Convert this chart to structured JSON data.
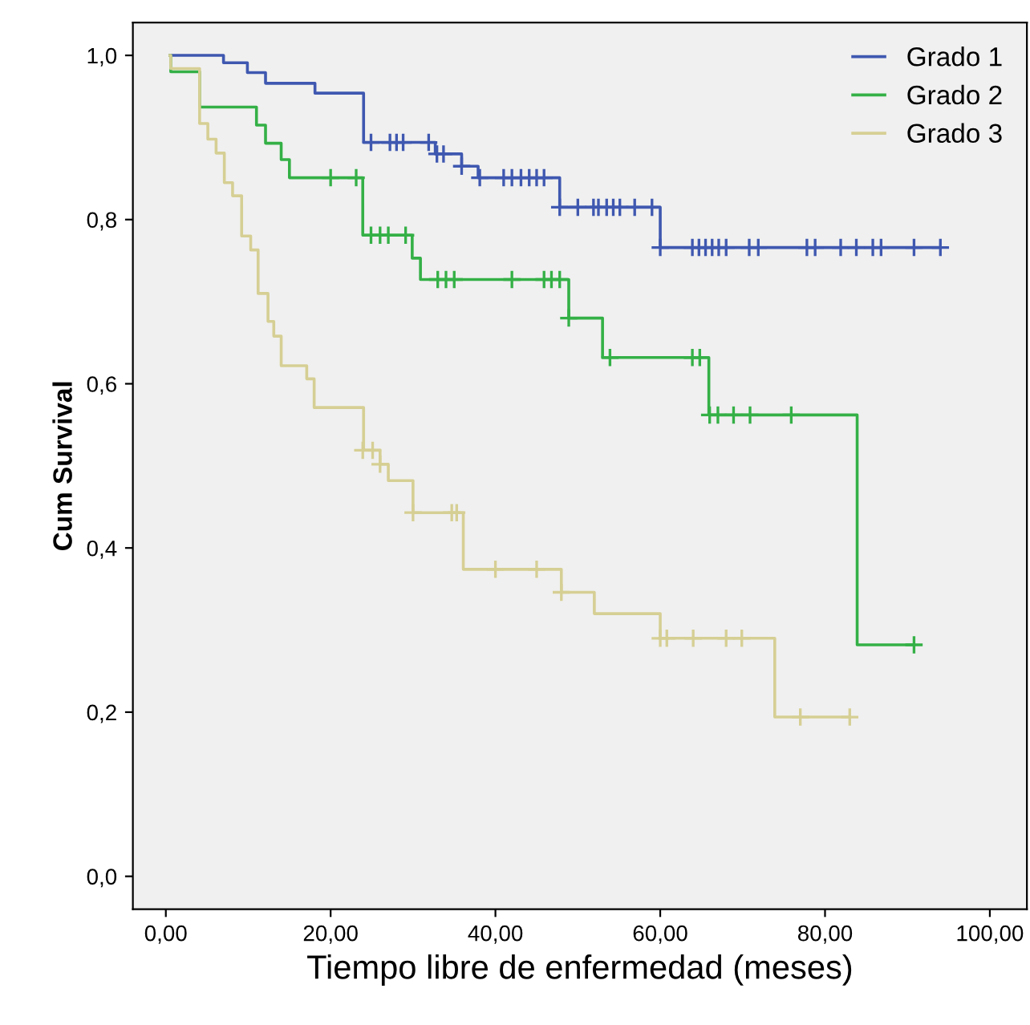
{
  "chart_data": {
    "type": "step",
    "xlabel": "Tiempo libre de enfermedad (meses)",
    "ylabel": "Cum Survival",
    "xlim": [
      -4,
      104.5
    ],
    "ylim": [
      -0.04,
      1.04
    ],
    "xticks": [
      {
        "value": 0,
        "label": "0,00"
      },
      {
        "value": 20,
        "label": "20,00"
      },
      {
        "value": 40,
        "label": "40,00"
      },
      {
        "value": 60,
        "label": "60,00"
      },
      {
        "value": 80,
        "label": "80,00"
      },
      {
        "value": 100,
        "label": "100,00"
      }
    ],
    "yticks": [
      {
        "value": 0,
        "label": "0,0"
      },
      {
        "value": 0.2,
        "label": "0,2"
      },
      {
        "value": 0.4,
        "label": "0,4"
      },
      {
        "value": 0.6,
        "label": "0,6"
      },
      {
        "value": 0.8,
        "label": "0,8"
      },
      {
        "value": 1.0,
        "label": "1,0"
      }
    ],
    "grid": false,
    "legend": "top right",
    "series": [
      {
        "name": "Grado 1",
        "color": "#3f58b0",
        "x": [
          0.5,
          7.0,
          9.9,
          12.1,
          18.1,
          24.0,
          32.7,
          35.9,
          37.9,
          47.8,
          60.0,
          94.0
        ],
        "values": [
          1.0,
          0.991,
          0.979,
          0.966,
          0.954,
          0.894,
          0.88,
          0.865,
          0.851,
          0.815,
          0.766,
          0.766
        ]
      },
      {
        "name": "Grado 2",
        "color": "#34b046",
        "x": [
          0.5,
          0.6,
          4.1,
          11.0,
          12.1,
          14.0,
          15.0,
          23.9,
          29.9,
          30.9,
          48.9,
          53.0,
          65.9,
          83.9,
          90.8
        ],
        "values": [
          1.0,
          0.98,
          0.937,
          0.915,
          0.893,
          0.873,
          0.851,
          0.781,
          0.753,
          0.727,
          0.68,
          0.632,
          0.562,
          0.282,
          0.282
        ]
      },
      {
        "name": "Grado 3",
        "color": "#d6cf94",
        "x": [
          0.5,
          0.6,
          4.1,
          5.1,
          6.1,
          7.1,
          8.1,
          9.2,
          10.3,
          11.2,
          12.4,
          13.1,
          14.0,
          17.1,
          18.0,
          24.0,
          26.0,
          27.0,
          30.0,
          36.1,
          48.0,
          52.0,
          60.0,
          73.9,
          83.0
        ],
        "values": [
          1.0,
          0.984,
          0.917,
          0.898,
          0.881,
          0.845,
          0.829,
          0.78,
          0.763,
          0.71,
          0.676,
          0.658,
          0.622,
          0.606,
          0.571,
          0.519,
          0.502,
          0.482,
          0.443,
          0.374,
          0.346,
          0.32,
          0.29,
          0.194,
          0.194
        ]
      },
      {
        "type": "scatter",
        "marker": "cross",
        "color": "#3f58b0",
        "x": [
          24.9,
          27.2,
          28.0,
          28.8,
          31.9,
          32.9,
          33.7,
          35.9,
          38.1,
          41.0,
          42.0,
          43.1,
          44.1,
          45.0,
          45.9,
          47.8,
          50.0,
          51.9,
          52.5,
          53.5,
          54.3,
          55.1,
          56.9,
          59.0,
          60.0,
          63.9,
          64.7,
          65.5,
          66.3,
          67.1,
          68.0,
          70.8,
          71.9,
          77.8,
          78.8,
          81.9,
          83.8,
          85.8,
          86.8,
          90.8,
          94.0
        ],
        "values": [
          0.894,
          0.894,
          0.894,
          0.894,
          0.894,
          0.88,
          0.88,
          0.865,
          0.851,
          0.851,
          0.851,
          0.851,
          0.851,
          0.851,
          0.851,
          0.815,
          0.815,
          0.815,
          0.815,
          0.815,
          0.815,
          0.815,
          0.815,
          0.815,
          0.766,
          0.766,
          0.766,
          0.766,
          0.766,
          0.766,
          0.766,
          0.766,
          0.766,
          0.766,
          0.766,
          0.766,
          0.766,
          0.766,
          0.766,
          0.766,
          0.766
        ]
      },
      {
        "type": "scatter",
        "marker": "cross",
        "color": "#34b046",
        "x": [
          20.0,
          23.1,
          24.9,
          26.0,
          27.0,
          29.1,
          33.0,
          34.0,
          35.0,
          42.0,
          45.9,
          46.8,
          47.8,
          48.9,
          53.9,
          63.9,
          64.8,
          66.0,
          67.0,
          68.9,
          70.9,
          75.9,
          90.8
        ],
        "values": [
          0.851,
          0.851,
          0.781,
          0.781,
          0.781,
          0.781,
          0.727,
          0.727,
          0.727,
          0.727,
          0.727,
          0.727,
          0.727,
          0.68,
          0.632,
          0.632,
          0.632,
          0.562,
          0.562,
          0.562,
          0.562,
          0.562,
          0.282
        ]
      },
      {
        "type": "scatter",
        "marker": "cross",
        "color": "#d6cf94",
        "x": [
          23.9,
          25.1,
          26.0,
          30.0,
          34.7,
          35.3,
          40.0,
          45.0,
          48.0,
          60.0,
          60.8,
          64.0,
          68.0,
          69.9,
          77.0,
          83.0
        ],
        "values": [
          0.519,
          0.519,
          0.502,
          0.443,
          0.443,
          0.443,
          0.374,
          0.374,
          0.346,
          0.29,
          0.29,
          0.29,
          0.29,
          0.29,
          0.194,
          0.194
        ]
      }
    ]
  }
}
